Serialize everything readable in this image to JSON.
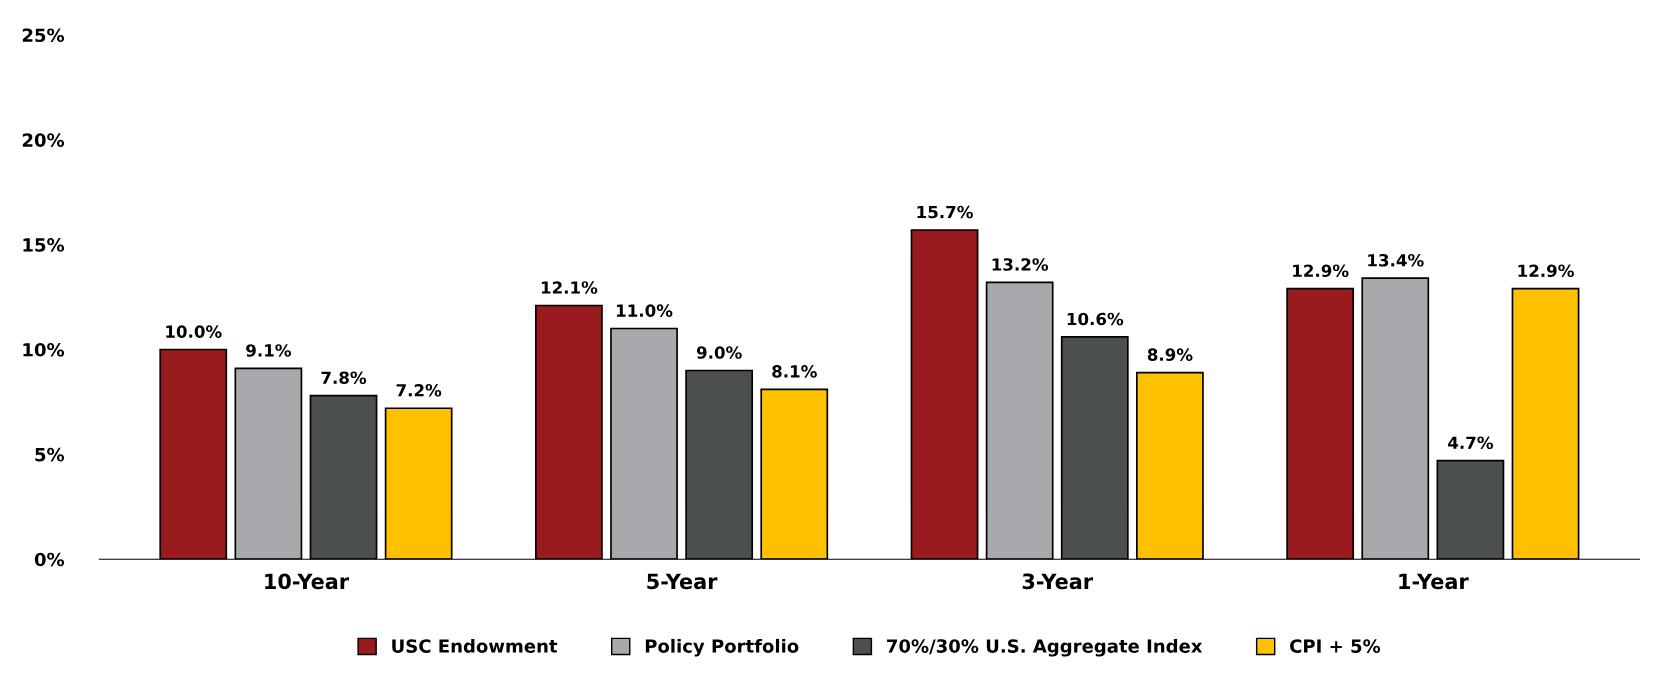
{
  "chart_data": {
    "type": "bar",
    "categories": [
      "10-Year",
      "5-Year",
      "3-Year",
      "1-Year"
    ],
    "series": [
      {
        "name": "USC Endowment",
        "color": "#991b1e",
        "values": [
          10.0,
          12.1,
          15.7,
          12.9
        ],
        "value_labels": [
          "10.0%",
          "12.1%",
          "15.7%",
          "12.9%"
        ]
      },
      {
        "name": "Policy Portfolio",
        "color": "#a7a9ac",
        "values": [
          9.1,
          11.0,
          13.2,
          13.4
        ],
        "value_labels": [
          "9.1%",
          "11.0%",
          "13.2%",
          "13.4%"
        ]
      },
      {
        "name": "70%/30% U.S. Aggregate Index",
        "color": "#4b4f4f",
        "values": [
          7.8,
          9.0,
          10.6,
          4.7
        ],
        "value_labels": [
          "7.8%",
          "9.0%",
          "10.6%",
          "4.7%"
        ]
      },
      {
        "name": "CPI + 5%",
        "color": "#ffc000",
        "values": [
          7.2,
          8.1,
          8.9,
          12.9
        ],
        "value_labels": [
          "7.2%",
          "8.1%",
          "8.9%",
          "12.9%"
        ]
      }
    ],
    "ylim": [
      0,
      25
    ],
    "yticks": [
      {
        "value": 0,
        "label": "0%"
      },
      {
        "value": 5,
        "label": "5%"
      },
      {
        "value": 10,
        "label": "10%"
      },
      {
        "value": 15,
        "label": "15%"
      },
      {
        "value": 20,
        "label": "20%"
      },
      {
        "value": 25,
        "label": "25%"
      }
    ],
    "grid": false,
    "legend": "bottom"
  }
}
